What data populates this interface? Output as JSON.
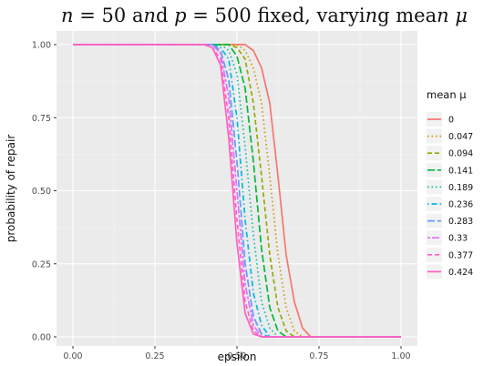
{
  "chart_data": {
    "type": "line",
    "title": "n = 50 and p = 500 fixed, varying mean μ",
    "xlabel": "epsilon",
    "ylabel": "probability of repair",
    "xlim": [
      0,
      1
    ],
    "ylim": [
      0,
      1
    ],
    "x_ticks": [
      "0.00",
      "0.25",
      "0.50",
      "0.75",
      "1.00"
    ],
    "y_ticks": [
      "0.00",
      "0.25",
      "0.50",
      "0.75",
      "1.00"
    ],
    "grid": true,
    "legend": {
      "title": "mean μ",
      "placement": "right"
    },
    "x": [
      0,
      0.025,
      0.05,
      0.075,
      0.1,
      0.125,
      0.15,
      0.175,
      0.2,
      0.225,
      0.25,
      0.275,
      0.3,
      0.325,
      0.35,
      0.375,
      0.4,
      0.425,
      0.45,
      0.475,
      0.5,
      0.525,
      0.55,
      0.575,
      0.6,
      0.625,
      0.65,
      0.675,
      0.7,
      0.725,
      0.75,
      0.775,
      0.8,
      0.825,
      0.85,
      0.875,
      0.9,
      0.925,
      0.95,
      0.975,
      1
    ],
    "series": [
      {
        "name": "0",
        "color": "#F8766D",
        "dash": "solid",
        "values": [
          1,
          1,
          1,
          1,
          1,
          1,
          1,
          1,
          1,
          1,
          1,
          1,
          1,
          1,
          1,
          1,
          1,
          1,
          1,
          1,
          1,
          1,
          0.98,
          0.92,
          0.8,
          0.55,
          0.28,
          0.12,
          0.03,
          0,
          0,
          0,
          0,
          0,
          0,
          0,
          0,
          0,
          0,
          0,
          0
        ]
      },
      {
        "name": "0.047",
        "color": "#D39200",
        "dash": "dotted",
        "values": [
          1,
          1,
          1,
          1,
          1,
          1,
          1,
          1,
          1,
          1,
          1,
          1,
          1,
          1,
          1,
          1,
          1,
          1,
          1,
          1,
          1,
          0.98,
          0.92,
          0.8,
          0.55,
          0.28,
          0.1,
          0.02,
          0,
          0,
          0,
          0,
          0,
          0,
          0,
          0,
          0,
          0,
          0,
          0,
          0
        ]
      },
      {
        "name": "0.094",
        "color": "#93AA00",
        "dash": "dashed",
        "values": [
          1,
          1,
          1,
          1,
          1,
          1,
          1,
          1,
          1,
          1,
          1,
          1,
          1,
          1,
          1,
          1,
          1,
          1,
          1,
          1,
          0.99,
          0.95,
          0.8,
          0.55,
          0.28,
          0.1,
          0.02,
          0,
          0,
          0,
          0,
          0,
          0,
          0,
          0,
          0,
          0,
          0,
          0,
          0,
          0
        ]
      },
      {
        "name": "0.141",
        "color": "#00BA38",
        "dash": "longdash",
        "values": [
          1,
          1,
          1,
          1,
          1,
          1,
          1,
          1,
          1,
          1,
          1,
          1,
          1,
          1,
          1,
          1,
          1,
          1,
          1,
          1,
          0.96,
          0.85,
          0.6,
          0.3,
          0.1,
          0.02,
          0,
          0,
          0,
          0,
          0,
          0,
          0,
          0,
          0,
          0,
          0,
          0,
          0,
          0,
          0
        ]
      },
      {
        "name": "0.189",
        "color": "#00C19F",
        "dash": "dotted",
        "values": [
          1,
          1,
          1,
          1,
          1,
          1,
          1,
          1,
          1,
          1,
          1,
          1,
          1,
          1,
          1,
          1,
          1,
          1,
          1,
          0.98,
          0.9,
          0.65,
          0.35,
          0.12,
          0.03,
          0,
          0,
          0,
          0,
          0,
          0,
          0,
          0,
          0,
          0,
          0,
          0,
          0,
          0,
          0,
          0
        ]
      },
      {
        "name": "0.236",
        "color": "#00B9E3",
        "dash": "dotdash",
        "values": [
          1,
          1,
          1,
          1,
          1,
          1,
          1,
          1,
          1,
          1,
          1,
          1,
          1,
          1,
          1,
          1,
          1,
          1,
          0.99,
          0.95,
          0.75,
          0.4,
          0.15,
          0.04,
          0,
          0,
          0,
          0,
          0,
          0,
          0,
          0,
          0,
          0,
          0,
          0,
          0,
          0,
          0,
          0,
          0
        ]
      },
      {
        "name": "0.283",
        "color": "#619CFF",
        "dash": "longdash",
        "values": [
          1,
          1,
          1,
          1,
          1,
          1,
          1,
          1,
          1,
          1,
          1,
          1,
          1,
          1,
          1,
          1,
          1,
          1,
          0.98,
          0.88,
          0.6,
          0.25,
          0.07,
          0.01,
          0,
          0,
          0,
          0,
          0,
          0,
          0,
          0,
          0,
          0,
          0,
          0,
          0,
          0,
          0,
          0,
          0
        ]
      },
      {
        "name": "0.33",
        "color": "#DB72FB",
        "dash": "twodash",
        "values": [
          1,
          1,
          1,
          1,
          1,
          1,
          1,
          1,
          1,
          1,
          1,
          1,
          1,
          1,
          1,
          1,
          1,
          1,
          0.97,
          0.82,
          0.5,
          0.18,
          0.04,
          0,
          0,
          0,
          0,
          0,
          0,
          0,
          0,
          0,
          0,
          0,
          0,
          0,
          0,
          0,
          0,
          0,
          0
        ]
      },
      {
        "name": "0.377",
        "color": "#FF61C3",
        "dash": "dashed",
        "values": [
          1,
          1,
          1,
          1,
          1,
          1,
          1,
          1,
          1,
          1,
          1,
          1,
          1,
          1,
          1,
          1,
          1,
          0.99,
          0.95,
          0.75,
          0.4,
          0.12,
          0.02,
          0,
          0,
          0,
          0,
          0,
          0,
          0,
          0,
          0,
          0,
          0,
          0,
          0,
          0,
          0,
          0,
          0,
          0
        ]
      },
      {
        "name": "0.424",
        "color": "#FF61C3",
        "dash": "solid",
        "values": [
          1,
          1,
          1,
          1,
          1,
          1,
          1,
          1,
          1,
          1,
          1,
          1,
          1,
          1,
          1,
          1,
          1,
          0.99,
          0.93,
          0.68,
          0.32,
          0.08,
          0.01,
          0,
          0,
          0,
          0,
          0,
          0,
          0,
          0,
          0,
          0,
          0,
          0,
          0,
          0,
          0,
          0,
          0,
          0
        ]
      }
    ]
  }
}
